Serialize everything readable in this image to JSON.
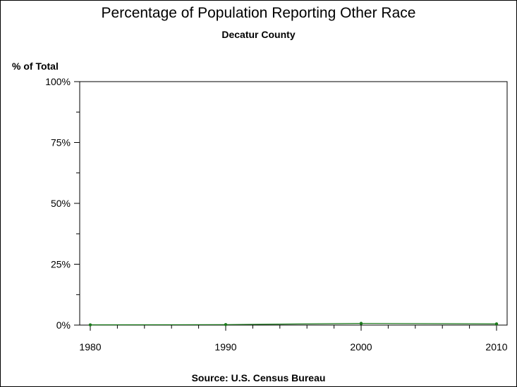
{
  "chart_data": {
    "type": "line",
    "title": "Percentage of Population Reporting Other Race",
    "subtitle": "Decatur County",
    "ylabel": "% of Total",
    "xlabel": "",
    "source": "Source: U.S. Census Bureau",
    "x_ticks": [
      "1980",
      "1990",
      "2000",
      "2010"
    ],
    "y_ticks": [
      "0%",
      "25%",
      "50%",
      "75%",
      "100%"
    ],
    "xlim": [
      1980,
      2010
    ],
    "ylim": [
      0,
      100
    ],
    "grid": false,
    "legend": "none",
    "series": [
      {
        "x": [
          1980,
          1990,
          2000,
          2010
        ],
        "values": [
          0.1,
          0.2,
          0.7,
          0.5
        ],
        "color": "#1a7a1a"
      }
    ]
  }
}
